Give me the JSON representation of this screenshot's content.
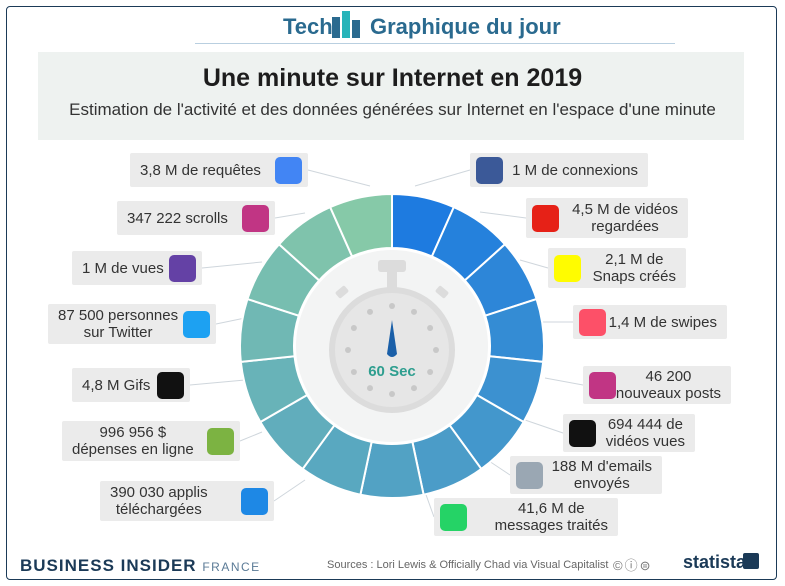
{
  "header": {
    "tech": "Tech",
    "graph": "Graphique du jour"
  },
  "chart_data": {
    "type": "pie",
    "title": "Une minute sur Internet en 2019",
    "subtitle": "Estimation de l'activité et des données générées sur Internet en l'espace d'une minute",
    "center_label": "60 Sec",
    "categories": [
      "1 M de connexions",
      "4,5 M de vidéos regardées",
      "2,1 M de Snaps créés",
      "1,4 M de swipes",
      "46 200 nouveaux posts",
      "694 444 de vidéos vues",
      "188 M d'emails envoyés",
      "41,6 M de messages traités",
      "390 030 applis téléchargées",
      "996 956 $ dépenses en ligne",
      "4,8 M Gifs",
      "87 500 personnes sur Twitter",
      "1 M de vues",
      "347 222 scrolls",
      "3,8 M de requêtes"
    ],
    "values": [
      1,
      1,
      1,
      1,
      1,
      1,
      1,
      1,
      1,
      1,
      1,
      1,
      1,
      1,
      1
    ]
  },
  "labels": {
    "right": [
      {
        "lines": [
          "1 M de connexions"
        ],
        "icon": "facebook-icon",
        "color": "#3b5998"
      },
      {
        "lines": [
          "4,5 M de vidéos",
          "regardées"
        ],
        "icon": "youtube-icon",
        "color": "#e62117"
      },
      {
        "lines": [
          "2,1 M de",
          "Snaps créés"
        ],
        "icon": "snapchat-icon",
        "color": "#fffc00"
      },
      {
        "lines": [
          "1,4 M de swipes"
        ],
        "icon": "tinder-icon",
        "color": "#fd5068"
      },
      {
        "lines": [
          "46 200",
          "nouveaux posts"
        ],
        "icon": "instagram-icon",
        "color": "#c13584"
      },
      {
        "lines": [
          "694 444 de",
          "vidéos vues"
        ],
        "icon": "netflix-icon",
        "color": "#111111"
      },
      {
        "lines": [
          "188 M d'emails",
          "envoyés"
        ],
        "icon": "email-icon",
        "color": "#9aa7b3"
      },
      {
        "lines": [
          "41,6 M de",
          "messages traités"
        ],
        "icon": "whatsapp-messenger-icon",
        "color": "#25d366"
      }
    ],
    "left": [
      {
        "lines": [
          "3,8 M de requêtes"
        ],
        "icon": "google-icon",
        "color": "#4285f4"
      },
      {
        "lines": [
          "347 222 scrolls"
        ],
        "icon": "instagram-icon",
        "color": "#c13584"
      },
      {
        "lines": [
          "1 M de vues"
        ],
        "icon": "twitch-icon",
        "color": "#6441a5"
      },
      {
        "lines": [
          "87 500 personnes",
          "sur Twitter"
        ],
        "icon": "twitter-icon",
        "color": "#1da1f2"
      },
      {
        "lines": [
          "4,8 M Gifs"
        ],
        "icon": "giphy-icon",
        "color": "#111111"
      },
      {
        "lines": [
          "996 956 $",
          "dépenses en ligne"
        ],
        "icon": "money-bag-icon",
        "color": "#7cb342"
      },
      {
        "lines": [
          "390 030 applis",
          "téléchargées"
        ],
        "icon": "app-store-icon",
        "color": "#1e88e5"
      }
    ]
  },
  "footer": {
    "brand": "BUSINESS INSIDER",
    "brand_suffix": "FRANCE",
    "source": "Sources : Lori Lewis & Officially Chad via Visual Capitalist",
    "licence": "©ⓘ⊜",
    "statista": "statista"
  },
  "colors": {
    "ring_start": "#1e7be0",
    "ring_end": "#86c9a8",
    "border": "#1b3a57"
  }
}
